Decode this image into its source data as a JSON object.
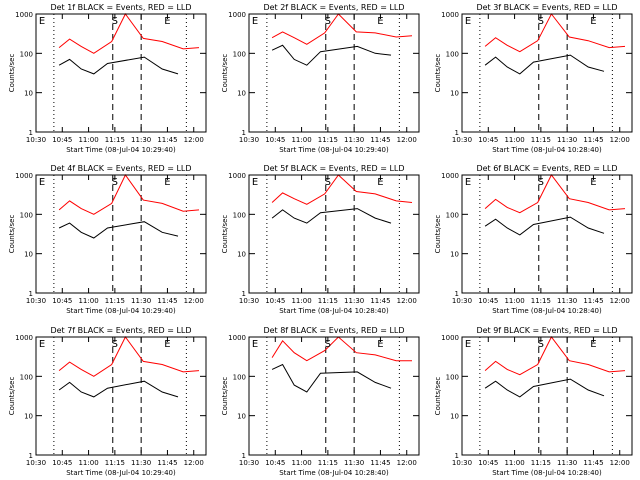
{
  "figure": {
    "background": "#ffffff",
    "axis_color": "#000000",
    "events_color": "#000000",
    "lld_color": "#ff0000"
  },
  "chart_data": [
    {
      "type": "line",
      "title": "Det 1f BLACK = Events, RED = LLD",
      "xlabel": "Start Time (08-Jul-04 10:29:40)",
      "ylabel": "Counts/sec",
      "ylog": true,
      "ylim": [
        1,
        1000
      ],
      "xlim": [
        "10:30",
        "12:07"
      ],
      "xticks": [
        "10:30",
        "10:45",
        "11:00",
        "11:15",
        "11:30",
        "11:45",
        "12:00"
      ],
      "yticks": [
        "1",
        "10",
        "100",
        "1000"
      ],
      "annotations": [
        "E",
        "S",
        "E"
      ],
      "grid": false,
      "series": [
        {
          "values": [
            [
              10.72,
              50
            ],
            [
              10.82,
              70
            ],
            [
              10.93,
              40
            ],
            [
              11.05,
              30
            ],
            [
              11.18,
              55
            ],
            [
              11.53,
              80
            ],
            [
              11.7,
              40
            ],
            [
              11.85,
              30
            ]
          ]
        },
        {
          "values": [
            [
              10.72,
              140
            ],
            [
              10.82,
              230
            ],
            [
              10.93,
              150
            ],
            [
              11.05,
              100
            ],
            [
              11.22,
              200
            ],
            [
              11.35,
              1000
            ],
            [
              11.52,
              240
            ],
            [
              11.7,
              200
            ],
            [
              11.9,
              130
            ],
            [
              12.05,
              140
            ]
          ]
        }
      ]
    },
    {
      "type": "line",
      "title": "Det 2f BLACK = Events, RED = LLD",
      "xlabel": "Start Time (08-Jul-04 10:29:40)",
      "ylabel": "Counts/sec",
      "ylog": true,
      "ylim": [
        1,
        1000
      ],
      "xlim": [
        "10:30",
        "12:07"
      ],
      "xticks": [
        "10:30",
        "10:45",
        "11:00",
        "11:15",
        "11:30",
        "11:45",
        "12:00"
      ],
      "yticks": [
        "1",
        "10",
        "100",
        "1000"
      ],
      "annotations": [
        "E",
        "S",
        "E"
      ],
      "grid": false,
      "series": [
        {
          "values": [
            [
              10.72,
              120
            ],
            [
              10.82,
              160
            ],
            [
              10.93,
              70
            ],
            [
              11.05,
              50
            ],
            [
              11.18,
              110
            ],
            [
              11.53,
              150
            ],
            [
              11.7,
              100
            ],
            [
              11.85,
              90
            ]
          ]
        },
        {
          "values": [
            [
              10.72,
              250
            ],
            [
              10.82,
              350
            ],
            [
              10.93,
              250
            ],
            [
              11.05,
              170
            ],
            [
              11.22,
              330
            ],
            [
              11.35,
              1000
            ],
            [
              11.52,
              350
            ],
            [
              11.7,
              330
            ],
            [
              11.9,
              260
            ],
            [
              12.05,
              280
            ]
          ]
        }
      ]
    },
    {
      "type": "line",
      "title": "Det 3f BLACK = Events, RED = LLD",
      "xlabel": "Start Time (08-Jul-04 10:28:40)",
      "ylabel": "Counts/sec",
      "ylog": true,
      "ylim": [
        1,
        1000
      ],
      "xlim": [
        "10:30",
        "12:07"
      ],
      "xticks": [
        "10:30",
        "10:45",
        "11:00",
        "11:15",
        "11:30",
        "11:45",
        "12:00"
      ],
      "yticks": [
        "1",
        "10",
        "100",
        "1000"
      ],
      "annotations": [
        "E",
        "S",
        "E"
      ],
      "grid": false,
      "series": [
        {
          "values": [
            [
              10.72,
              50
            ],
            [
              10.82,
              80
            ],
            [
              10.93,
              45
            ],
            [
              11.05,
              30
            ],
            [
              11.18,
              60
            ],
            [
              11.53,
              90
            ],
            [
              11.7,
              45
            ],
            [
              11.85,
              35
            ]
          ]
        },
        {
          "values": [
            [
              10.72,
              150
            ],
            [
              10.82,
              250
            ],
            [
              10.93,
              160
            ],
            [
              11.05,
              110
            ],
            [
              11.22,
              210
            ],
            [
              11.35,
              1000
            ],
            [
              11.52,
              260
            ],
            [
              11.7,
              210
            ],
            [
              11.9,
              140
            ],
            [
              12.05,
              150
            ]
          ]
        }
      ]
    },
    {
      "type": "line",
      "title": "Det 4f BLACK = Events, RED = LLD",
      "xlabel": "Start Time (08-Jul-04 10:29:40)",
      "ylabel": "Counts/sec",
      "ylog": true,
      "ylim": [
        1,
        1000
      ],
      "xlim": [
        "10:30",
        "12:07"
      ],
      "xticks": [
        "10:30",
        "10:45",
        "11:00",
        "11:15",
        "11:30",
        "11:45",
        "12:00"
      ],
      "yticks": [
        "1",
        "10",
        "100",
        "1000"
      ],
      "annotations": [
        "E",
        "S",
        "E"
      ],
      "grid": false,
      "series": [
        {
          "values": [
            [
              10.72,
              45
            ],
            [
              10.82,
              60
            ],
            [
              10.93,
              35
            ],
            [
              11.05,
              25
            ],
            [
              11.18,
              45
            ],
            [
              11.53,
              65
            ],
            [
              11.7,
              35
            ],
            [
              11.85,
              28
            ]
          ]
        },
        {
          "values": [
            [
              10.72,
              130
            ],
            [
              10.82,
              220
            ],
            [
              10.93,
              140
            ],
            [
              11.05,
              100
            ],
            [
              11.22,
              190
            ],
            [
              11.35,
              1000
            ],
            [
              11.52,
              230
            ],
            [
              11.7,
              190
            ],
            [
              11.9,
              120
            ],
            [
              12.05,
              130
            ]
          ]
        }
      ]
    },
    {
      "type": "line",
      "title": "Det 5f BLACK = Events, RED = LLD",
      "xlabel": "Start Time (08-Jul-04 10:28:40)",
      "ylabel": "Counts/sec",
      "ylog": true,
      "ylim": [
        1,
        1000
      ],
      "xlim": [
        "10:30",
        "12:07"
      ],
      "xticks": [
        "10:30",
        "10:45",
        "11:00",
        "11:15",
        "11:30",
        "11:45",
        "12:00"
      ],
      "yticks": [
        "1",
        "10",
        "100",
        "1000"
      ],
      "annotations": [
        "E",
        "S",
        "E"
      ],
      "grid": false,
      "series": [
        {
          "values": [
            [
              10.72,
              80
            ],
            [
              10.82,
              130
            ],
            [
              10.93,
              80
            ],
            [
              11.05,
              60
            ],
            [
              11.18,
              110
            ],
            [
              11.53,
              140
            ],
            [
              11.7,
              80
            ],
            [
              11.85,
              60
            ]
          ]
        },
        {
          "values": [
            [
              10.72,
              200
            ],
            [
              10.82,
              350
            ],
            [
              10.93,
              250
            ],
            [
              11.05,
              180
            ],
            [
              11.22,
              330
            ],
            [
              11.35,
              1000
            ],
            [
              11.52,
              380
            ],
            [
              11.7,
              330
            ],
            [
              11.9,
              220
            ],
            [
              12.05,
              200
            ]
          ]
        }
      ]
    },
    {
      "type": "line",
      "title": "Det 6f BLACK = Events, RED = LLD",
      "xlabel": "Start Time (08-Jul-04 10:28:40)",
      "ylabel": "Counts/sec",
      "ylog": true,
      "ylim": [
        1,
        1000
      ],
      "xlim": [
        "10:30",
        "12:07"
      ],
      "xticks": [
        "10:30",
        "10:45",
        "11:00",
        "11:15",
        "11:30",
        "11:45",
        "12:00"
      ],
      "yticks": [
        "1",
        "10",
        "100",
        "1000"
      ],
      "annotations": [
        "E",
        "S",
        "E"
      ],
      "grid": false,
      "series": [
        {
          "values": [
            [
              10.72,
              50
            ],
            [
              10.82,
              75
            ],
            [
              10.93,
              45
            ],
            [
              11.05,
              30
            ],
            [
              11.18,
              55
            ],
            [
              11.53,
              85
            ],
            [
              11.7,
              45
            ],
            [
              11.85,
              33
            ]
          ]
        },
        {
          "values": [
            [
              10.72,
              140
            ],
            [
              10.82,
              240
            ],
            [
              10.93,
              150
            ],
            [
              11.05,
              110
            ],
            [
              11.22,
              200
            ],
            [
              11.35,
              1000
            ],
            [
              11.52,
              250
            ],
            [
              11.7,
              200
            ],
            [
              11.9,
              130
            ],
            [
              12.05,
              140
            ]
          ]
        }
      ]
    },
    {
      "type": "line",
      "title": "Det 7f BLACK = Events, RED = LLD",
      "xlabel": "Start Time (08-Jul-04 10:29:40)",
      "ylabel": "Counts/sec",
      "ylog": true,
      "ylim": [
        1,
        1000
      ],
      "xlim": [
        "10:30",
        "12:07"
      ],
      "xticks": [
        "10:30",
        "10:45",
        "11:00",
        "11:15",
        "11:30",
        "11:45",
        "12:00"
      ],
      "yticks": [
        "1",
        "10",
        "100",
        "1000"
      ],
      "annotations": [
        "E",
        "S",
        "E"
      ],
      "grid": false,
      "series": [
        {
          "values": [
            [
              10.72,
              45
            ],
            [
              10.82,
              70
            ],
            [
              10.93,
              40
            ],
            [
              11.05,
              30
            ],
            [
              11.18,
              50
            ],
            [
              11.53,
              75
            ],
            [
              11.7,
              40
            ],
            [
              11.85,
              30
            ]
          ]
        },
        {
          "values": [
            [
              10.72,
              140
            ],
            [
              10.82,
              230
            ],
            [
              10.93,
              150
            ],
            [
              11.05,
              100
            ],
            [
              11.22,
              200
            ],
            [
              11.35,
              1000
            ],
            [
              11.52,
              240
            ],
            [
              11.7,
              200
            ],
            [
              11.9,
              130
            ],
            [
              12.05,
              140
            ]
          ]
        }
      ]
    },
    {
      "type": "line",
      "title": "Det 8f BLACK = Events, RED = LLD",
      "xlabel": "Start Time (08-Jul-04 10:28:40)",
      "ylabel": "Counts/sec",
      "ylog": true,
      "ylim": [
        1,
        1000
      ],
      "xlim": [
        "10:30",
        "12:07"
      ],
      "xticks": [
        "10:30",
        "10:45",
        "11:00",
        "11:15",
        "11:30",
        "11:45",
        "12:00"
      ],
      "yticks": [
        "1",
        "10",
        "100",
        "1000"
      ],
      "annotations": [
        "E",
        "S",
        "E"
      ],
      "grid": false,
      "series": [
        {
          "values": [
            [
              10.72,
              150
            ],
            [
              10.82,
              200
            ],
            [
              10.93,
              60
            ],
            [
              11.05,
              40
            ],
            [
              11.18,
              120
            ],
            [
              11.53,
              130
            ],
            [
              11.7,
              70
            ],
            [
              11.85,
              50
            ]
          ]
        },
        {
          "values": [
            [
              10.72,
              300
            ],
            [
              10.82,
              800
            ],
            [
              10.93,
              400
            ],
            [
              11.05,
              250
            ],
            [
              11.22,
              450
            ],
            [
              11.35,
              1000
            ],
            [
              11.52,
              400
            ],
            [
              11.7,
              350
            ],
            [
              11.9,
              250
            ],
            [
              12.05,
              250
            ]
          ]
        }
      ]
    },
    {
      "type": "line",
      "title": "Det 9f BLACK = Events, RED = LLD",
      "xlabel": "Start Time (08-Jul-04 10:28:40)",
      "ylabel": "Counts/sec",
      "ylog": true,
      "ylim": [
        1,
        1000
      ],
      "xlim": [
        "10:30",
        "12:07"
      ],
      "xticks": [
        "10:30",
        "10:45",
        "11:00",
        "11:15",
        "11:30",
        "11:45",
        "12:00"
      ],
      "yticks": [
        "1",
        "10",
        "100",
        "1000"
      ],
      "annotations": [
        "E",
        "S",
        "E"
      ],
      "grid": false,
      "series": [
        {
          "values": [
            [
              10.72,
              50
            ],
            [
              10.82,
              75
            ],
            [
              10.93,
              45
            ],
            [
              11.05,
              30
            ],
            [
              11.18,
              55
            ],
            [
              11.53,
              85
            ],
            [
              11.7,
              45
            ],
            [
              11.85,
              32
            ]
          ]
        },
        {
          "values": [
            [
              10.72,
              140
            ],
            [
              10.82,
              240
            ],
            [
              10.93,
              150
            ],
            [
              11.05,
              110
            ],
            [
              11.22,
              200
            ],
            [
              11.35,
              1000
            ],
            [
              11.52,
              250
            ],
            [
              11.7,
              200
            ],
            [
              11.9,
              130
            ],
            [
              12.05,
              140
            ]
          ]
        }
      ]
    }
  ]
}
